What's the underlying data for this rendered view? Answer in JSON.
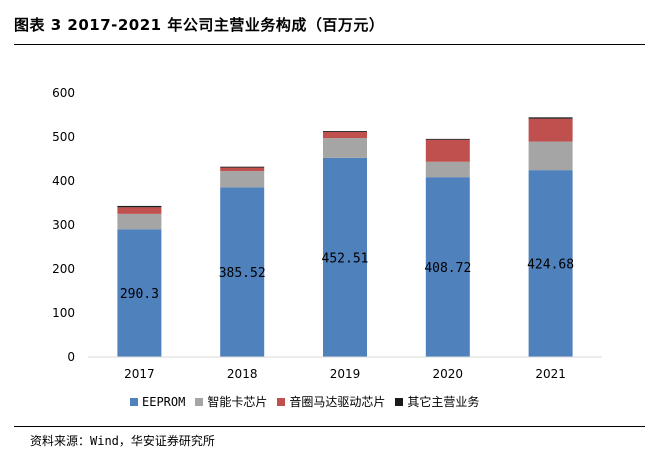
{
  "page": {
    "title": "图表 3 2017-2021 年公司主营业务构成（百万元）",
    "source": "资料来源：Wind，华安证券研究所"
  },
  "chart_data": {
    "type": "bar",
    "stacked": true,
    "title": "",
    "xlabel": "",
    "ylabel": "",
    "categories": [
      "2017",
      "2018",
      "2019",
      "2020",
      "2021"
    ],
    "ylim": [
      0,
      600
    ],
    "yticks": [
      "0",
      "100",
      "200",
      "300",
      "400",
      "500",
      "600"
    ],
    "grid": false,
    "legend_position": "bottom",
    "series": [
      {
        "name": "EEPROM",
        "color": "#4f81bd",
        "values": [
          290.3,
          385.52,
          452.51,
          408.72,
          424.68
        ],
        "labels": [
          "290.3",
          "385.52",
          "452.51",
          "408.72",
          "424.68"
        ]
      },
      {
        "name": "智能卡芯片",
        "color": "#a5a5a5",
        "values": [
          35,
          37,
          45,
          35,
          65
        ]
      },
      {
        "name": "音圈马达驱动芯片",
        "color": "#c0504d",
        "values": [
          15,
          8,
          14,
          50,
          52
        ]
      },
      {
        "name": "其它主营业务",
        "color": "#1a1a1a",
        "values": [
          3,
          2,
          2,
          2,
          3
        ]
      }
    ]
  }
}
